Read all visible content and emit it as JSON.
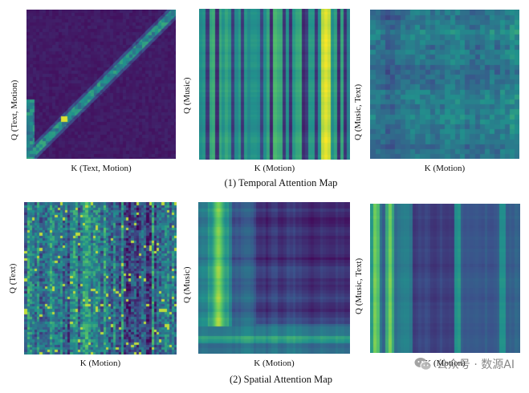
{
  "row1": {
    "caption": "(1) Temporal Attention Map",
    "panels": [
      {
        "id": "t1",
        "xlabel": "K (Text, Motion)",
        "ylabel": "Q (Text, Motion)",
        "pattern": "diagonal"
      },
      {
        "id": "t2",
        "xlabel": "K (Motion)",
        "ylabel": "Q (Music)",
        "pattern": "vertical-stripes"
      },
      {
        "id": "t3",
        "xlabel": "K (Motion)",
        "ylabel": "Q (Music, Text)",
        "pattern": "grid-blocks"
      }
    ]
  },
  "row2": {
    "caption": "(2) Spatial Attention Map",
    "panels": [
      {
        "id": "s1",
        "xlabel": "K (Motion)",
        "ylabel": "Q (Text)",
        "pattern": "noisy"
      },
      {
        "id": "s2",
        "xlabel": "K (Motion)",
        "ylabel": "Q (Music)",
        "pattern": "corner-bright"
      },
      {
        "id": "s3",
        "xlabel": "K (Motion)",
        "ylabel": "Q (Music, Text)",
        "pattern": "vertical-bands"
      }
    ]
  },
  "colormap": [
    "#440154",
    "#3b528b",
    "#21918c",
    "#5ec962",
    "#fde725"
  ],
  "watermark": {
    "text": "公众号 · 数源AI",
    "icon": "wechat-icon"
  }
}
